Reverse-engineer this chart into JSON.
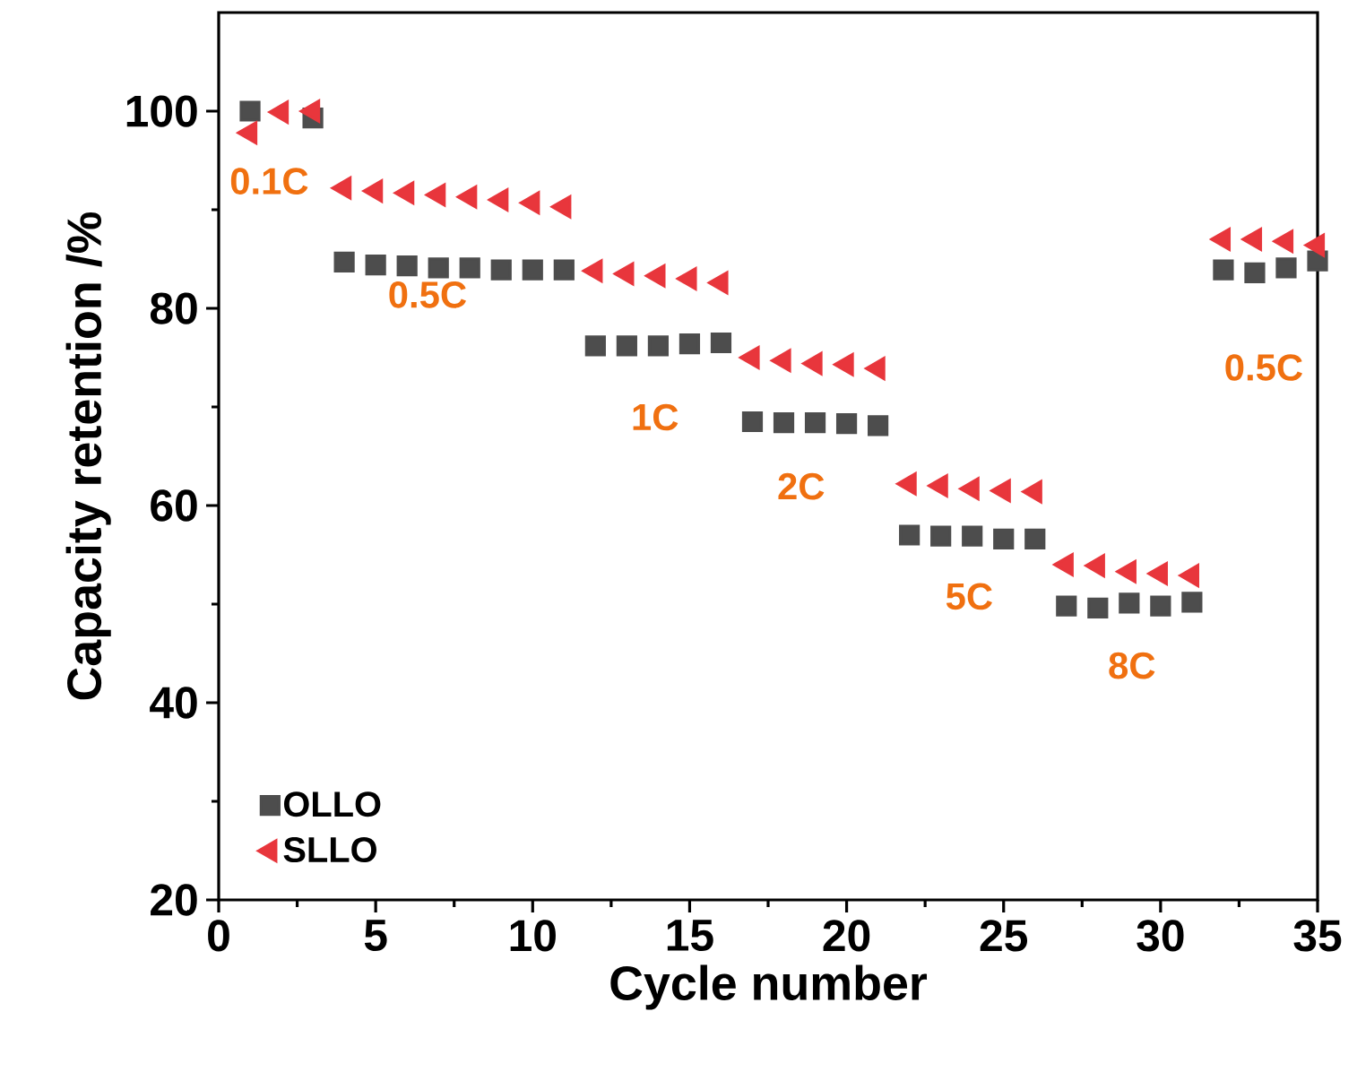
{
  "chart_data": {
    "type": "scatter",
    "xlabel": "Cycle number",
    "ylabel": "Capacity retention /%",
    "xlim": [
      0,
      35
    ],
    "ylim": [
      20,
      110
    ],
    "xticks": [
      0,
      5,
      10,
      15,
      20,
      25,
      30,
      35
    ],
    "yticks": [
      20,
      40,
      60,
      80,
      100
    ],
    "legend": "bottom left",
    "grid": false,
    "x": [
      1,
      2,
      3,
      4,
      5,
      6,
      7,
      8,
      9,
      10,
      11,
      12,
      13,
      14,
      15,
      16,
      17,
      18,
      19,
      20,
      21,
      22,
      23,
      24,
      25,
      26,
      27,
      28,
      29,
      30,
      31,
      32,
      33,
      34,
      35
    ],
    "series": [
      {
        "name": "OLLO",
        "color": "#4d4d4d",
        "marker": "square",
        "values": [
          100,
          null,
          99.3,
          84.7,
          84.4,
          84.3,
          84.1,
          84.1,
          83.9,
          83.9,
          83.9,
          76.2,
          76.2,
          76.2,
          76.4,
          76.5,
          68.5,
          68.4,
          68.4,
          68.3,
          68.1,
          57.0,
          56.9,
          56.9,
          56.6,
          56.6,
          49.8,
          49.6,
          50.1,
          49.8,
          50.2,
          83.9,
          83.6,
          84.1,
          84.8
        ]
      },
      {
        "name": "SLLO",
        "color": "#e8363c",
        "marker": "triangle",
        "values": [
          97.8,
          99.9,
          100,
          92.2,
          91.9,
          91.7,
          91.5,
          91.3,
          91.0,
          90.7,
          90.3,
          83.8,
          83.5,
          83.3,
          83.0,
          82.6,
          75.0,
          74.7,
          74.4,
          74.3,
          73.9,
          62.2,
          62.0,
          61.7,
          61.5,
          61.4,
          54.0,
          53.9,
          53.3,
          53.1,
          52.9,
          87.0,
          87.0,
          86.8,
          86.4
        ]
      }
    ],
    "annotations": [
      "0.1C",
      "0.5C",
      "1C",
      "2C",
      "5C",
      "8C",
      "0.5C"
    ]
  }
}
